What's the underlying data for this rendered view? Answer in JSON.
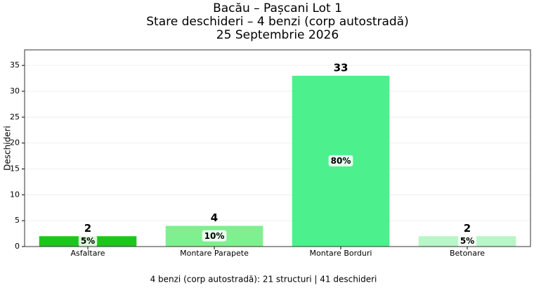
{
  "chart_data": {
    "type": "bar",
    "title": [
      "Bacău – Pașcani Lot 1",
      "Stare deschideri – 4 benzi (corp autostradă)",
      "25 Septembrie 2026"
    ],
    "y_label": "Deschideri",
    "categories": [
      "Asfaltare",
      "Montare Parapete",
      "Montare Borduri",
      "Betonare"
    ],
    "values": [
      2,
      4,
      33,
      2
    ],
    "share_labels": [
      "5%",
      "10%",
      "80%",
      "5%"
    ],
    "colors": [
      "#1fc41f",
      "#80ef8f",
      "#4cf08c",
      "#b8f5c7"
    ],
    "ylim": [
      0,
      38
    ],
    "yticks": [
      0,
      5,
      10,
      15,
      20,
      25,
      30,
      35
    ],
    "grid": true,
    "footer": "4 benzi (corp autostradă): 21 structuri | 41 deschideri"
  }
}
